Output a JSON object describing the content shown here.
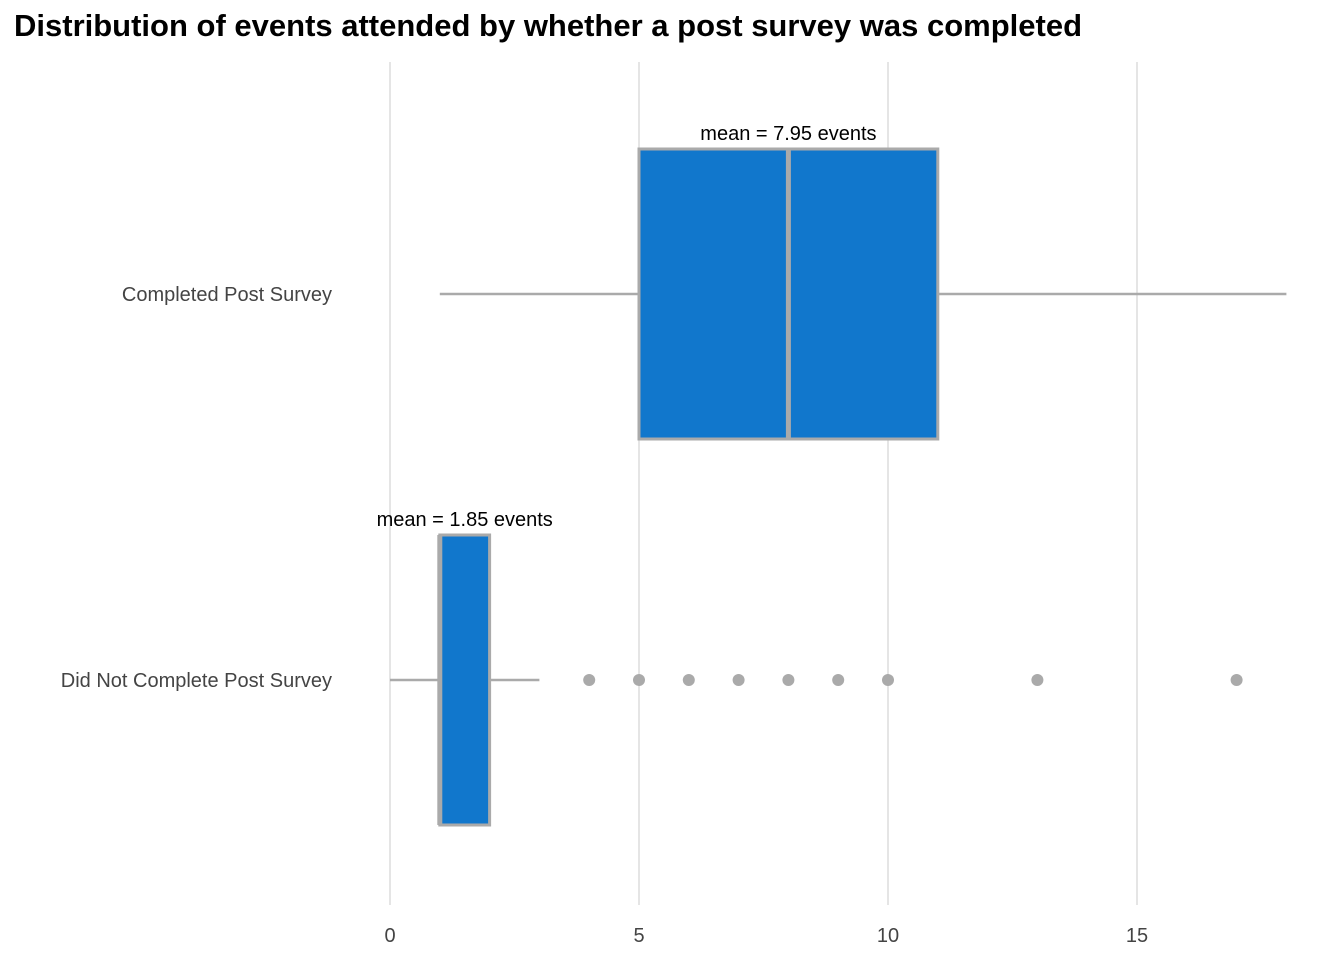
{
  "chart_data": {
    "type": "boxplot",
    "title": "Distribution of events attended by whether a post survey was completed",
    "xlabel": "",
    "ylabel": "",
    "orientation": "horizontal",
    "xlim": [
      0,
      18
    ],
    "x_ticks": [
      0,
      5,
      10,
      15
    ],
    "grid": "vertical major gridlines",
    "legend": "none",
    "colors": {
      "box_fill": "#1177CC",
      "box_outline": "#AAAAAA",
      "whisker": "#AAAAAA",
      "outlier": "#AAAAAA",
      "grid": "#E5E5E5"
    },
    "categories": [
      "Completed Post Survey",
      "Did Not Complete Post Survey"
    ],
    "boxes": [
      {
        "category": "Completed Post Survey",
        "whisker_low": 1,
        "q1": 5,
        "median": 8,
        "q3": 11,
        "whisker_high": 18,
        "outliers": [],
        "mean_label": "mean = 7.95 events"
      },
      {
        "category": "Did Not Complete Post Survey",
        "whisker_low": 0,
        "q1": 1,
        "median": 1,
        "q3": 2,
        "whisker_high": 3,
        "outliers": [
          4,
          5,
          6,
          7,
          8,
          9,
          10,
          13,
          17
        ],
        "mean_label": "mean = 1.85 events"
      }
    ]
  }
}
